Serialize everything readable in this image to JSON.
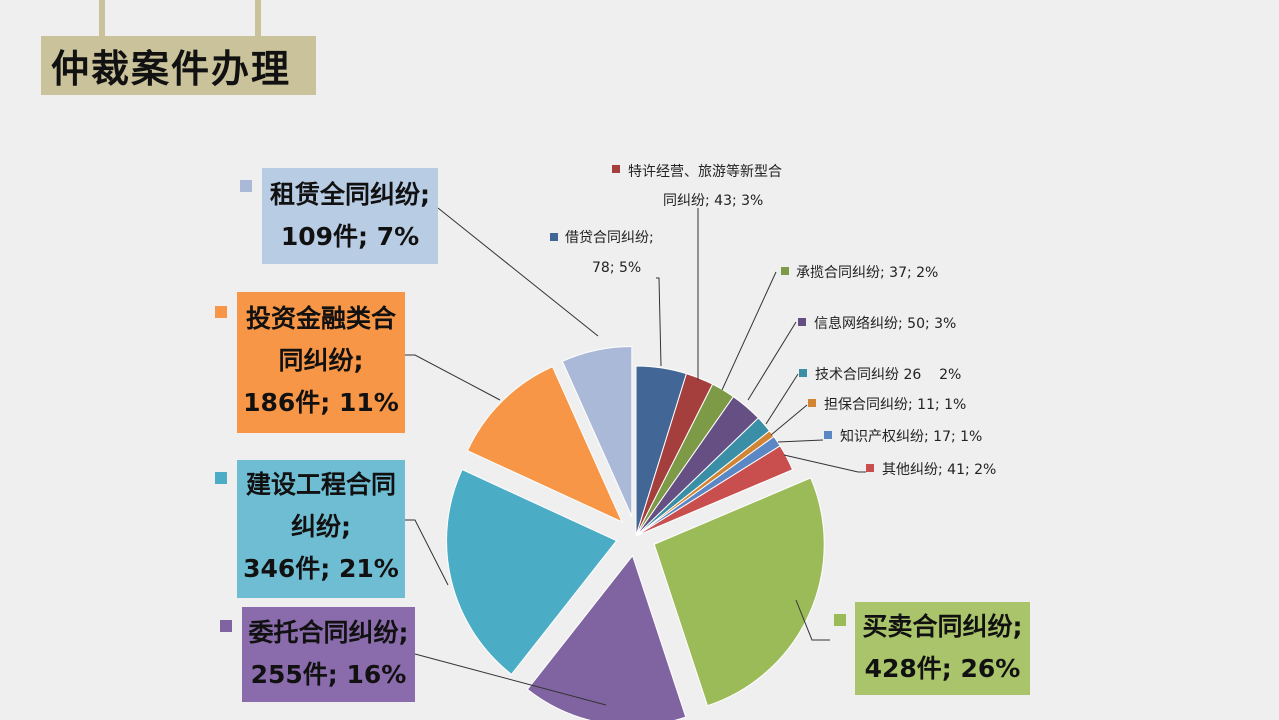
{
  "page": {
    "title": "仲裁案件办理"
  },
  "chart_data": {
    "type": "pie",
    "title": "",
    "slices": [
      {
        "label": "借贷合同纠纷;",
        "count": 78,
        "percent": "5%",
        "value_text": "78; 5%",
        "color": "#426796",
        "explode": 0
      },
      {
        "label": "特许经营、旅游等新型合同纠纷;",
        "count": 43,
        "percent": "3%",
        "value_text": "43; 3%",
        "color": "#a43f3e",
        "explode": 0
      },
      {
        "label": "承揽合同纠纷;",
        "count": 37,
        "percent": "2%",
        "value_text": "承揽合同纠纷; 37; 2%",
        "color": "#7d9a47",
        "explode": 0
      },
      {
        "label": "信息网络纠纷;",
        "count": 50,
        "percent": "3%",
        "value_text": "信息网络纠纷; 50; 3%",
        "color": "#664f82",
        "explode": 0
      },
      {
        "label": "技术合同纠纷",
        "count": 26,
        "percent": "2%",
        "value_text": "技术合同纠纷 26    2%",
        "color": "#3a8ea5",
        "explode": 0
      },
      {
        "label": "担保合同纠纷;",
        "count": 11,
        "percent": "1%",
        "value_text": "担保合同纠纷; 11; 1%",
        "color": "#d28435",
        "explode": 0
      },
      {
        "label": "知识产权纠纷;",
        "count": 17,
        "percent": "1%",
        "value_text": "知识产权纠纷; 17; 1%",
        "color": "#5b87c5",
        "explode": 0
      },
      {
        "label": "其他纠纷;",
        "count": 41,
        "percent": "2%",
        "value_text": "其他纠纷; 41; 2%",
        "color": "#c84f4d",
        "explode": 0
      },
      {
        "label": "买卖合同纠纷;",
        "count": 428,
        "percent": "26%",
        "value_text": "428件; 26%",
        "color": "#9bbb59",
        "explode": 1
      },
      {
        "label": "委托合同纠纷;",
        "count": 255,
        "percent": "16%",
        "value_text": "255件; 16%",
        "color": "#8064a2",
        "explode": 1
      },
      {
        "label": "建设工程合同纠纷;",
        "count": 346,
        "percent": "21%",
        "value_text": "346件; 21%",
        "color": "#4bacc6",
        "explode": 1
      },
      {
        "label": "投资金融类合同纠纷;",
        "count": 186,
        "percent": "11%",
        "value_text": "186件; 11%",
        "color": "#f79646",
        "explode": 1
      },
      {
        "label": "租赁全同纠纷;",
        "count": 109,
        "percent": "7%",
        "value_text": "109件; 7%",
        "color": "#aab9d7",
        "explode": 1
      }
    ]
  },
  "labels": {
    "loan": {
      "line1": "借贷合同纠纷;",
      "line2": "78; 5%"
    },
    "franchise": {
      "line1": "特许经营、旅游等新型合",
      "line2": "同纠纷; 43; 3%"
    },
    "contracting": "承揽合同纠纷; 37; 2%",
    "network": "信息网络纠纷; 50; 3%",
    "tech": "技术合同纠纷 26    2%",
    "guarantee": "担保合同纠纷; 11; 1%",
    "ip": "知识产权纠纷; 17; 1%",
    "other": "其他纠纷; 41; 2%",
    "lease": {
      "line1": "租赁全同纠纷;",
      "line2": "109件; 7%"
    },
    "invest": {
      "line1": "投资金融类合",
      "line2": "同纠纷;",
      "line3": "186件; 11%"
    },
    "construction": {
      "line1": "建设工程合同",
      "line2": "纠纷;",
      "line3": "346件; 21%"
    },
    "entrust": {
      "line1": "委托合同纠纷;",
      "line2": "255件; 16%"
    },
    "sales": {
      "line1": "买卖合同纠纷;",
      "line2": "428件; 26%"
    }
  }
}
